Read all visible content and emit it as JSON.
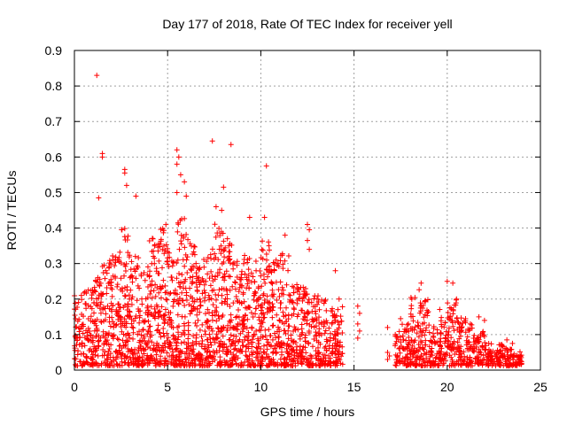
{
  "chart_data": {
    "type": "scatter",
    "title": "Day 177 of 2018, Rate Of TEC Index for receiver yell",
    "xlabel": "GPS time / hours",
    "ylabel": "ROTI / TECUs",
    "xlim": [
      0,
      25
    ],
    "ylim": [
      0,
      0.9
    ],
    "xticks": [
      0,
      5,
      10,
      15,
      20,
      25
    ],
    "xtick_labels": [
      "0",
      "5",
      "10",
      "15",
      "20",
      "25"
    ],
    "yticks": [
      0,
      0.1,
      0.2,
      0.3,
      0.4,
      0.5,
      0.6,
      0.7,
      0.8,
      0.9
    ],
    "ytick_labels": [
      "0",
      "0.1",
      "0.2",
      "0.3",
      "0.4",
      "0.5",
      "0.6",
      "0.7",
      "0.8",
      "0.9"
    ],
    "grid": true,
    "marker": "+",
    "color": "#ff0000",
    "series": [
      {
        "name": "ROTI",
        "outliers": [
          [
            1.2,
            0.83
          ],
          [
            7.4,
            0.645
          ],
          [
            8.4,
            0.635
          ],
          [
            10.3,
            0.575
          ],
          [
            1.5,
            0.61
          ],
          [
            1.5,
            0.6
          ],
          [
            5.5,
            0.62
          ],
          [
            5.6,
            0.6
          ],
          [
            5.5,
            0.58
          ],
          [
            5.7,
            0.55
          ],
          [
            5.9,
            0.53
          ],
          [
            2.7,
            0.565
          ],
          [
            2.7,
            0.555
          ],
          [
            2.8,
            0.52
          ],
          [
            8.0,
            0.515
          ],
          [
            1.3,
            0.485
          ],
          [
            6.0,
            0.49
          ],
          [
            3.3,
            0.49
          ],
          [
            5.5,
            0.5
          ],
          [
            7.6,
            0.46
          ],
          [
            7.9,
            0.45
          ],
          [
            9.4,
            0.43
          ],
          [
            10.2,
            0.43
          ],
          [
            12.5,
            0.41
          ],
          [
            12.6,
            0.395
          ],
          [
            12.5,
            0.365
          ],
          [
            12.6,
            0.34
          ],
          [
            11.3,
            0.38
          ],
          [
            14.0,
            0.28
          ],
          [
            14.2,
            0.2
          ],
          [
            15.2,
            0.18
          ],
          [
            15.3,
            0.16
          ],
          [
            15.2,
            0.13
          ],
          [
            15.3,
            0.11
          ],
          [
            15.2,
            0.09
          ],
          [
            16.8,
            0.05
          ],
          [
            16.9,
            0.04
          ],
          [
            16.8,
            0.03
          ],
          [
            16.8,
            0.12
          ],
          [
            17.5,
            0.145
          ],
          [
            18.6,
            0.245
          ],
          [
            20.0,
            0.25
          ],
          [
            20.3,
            0.245
          ],
          [
            20.5,
            0.2
          ],
          [
            21.7,
            0.15
          ],
          [
            22.0,
            0.14
          ],
          [
            23.2,
            0.085
          ],
          [
            23.5,
            0.075
          ]
        ],
        "density_profile": {
          "bins": [
            [
              0.0,
              0.5,
              0.2
            ],
            [
              0.5,
              1.0,
              0.22
            ],
            [
              1.0,
              1.5,
              0.25
            ],
            [
              1.5,
              2.0,
              0.3
            ],
            [
              2.0,
              2.5,
              0.32
            ],
            [
              2.5,
              3.0,
              0.4
            ],
            [
              3.0,
              3.5,
              0.32
            ],
            [
              3.5,
              4.0,
              0.28
            ],
            [
              4.0,
              4.5,
              0.36
            ],
            [
              4.5,
              5.0,
              0.4
            ],
            [
              5.0,
              5.5,
              0.33
            ],
            [
              5.5,
              6.0,
              0.42
            ],
            [
              6.0,
              6.5,
              0.36
            ],
            [
              6.5,
              7.0,
              0.3
            ],
            [
              7.0,
              7.5,
              0.33
            ],
            [
              7.5,
              8.0,
              0.4
            ],
            [
              8.0,
              8.5,
              0.38
            ],
            [
              8.5,
              9.0,
              0.3
            ],
            [
              9.0,
              9.5,
              0.32
            ],
            [
              9.5,
              10.0,
              0.3
            ],
            [
              10.0,
              10.5,
              0.36
            ],
            [
              10.5,
              11.0,
              0.3
            ],
            [
              11.0,
              11.5,
              0.32
            ],
            [
              11.5,
              12.0,
              0.25
            ],
            [
              12.0,
              12.5,
              0.23
            ],
            [
              12.5,
              13.0,
              0.2
            ],
            [
              13.0,
              13.5,
              0.2
            ],
            [
              13.5,
              14.0,
              0.18
            ],
            [
              14.0,
              14.4,
              0.17
            ],
            [
              17.2,
              17.5,
              0.1
            ],
            [
              17.5,
              18.0,
              0.12
            ],
            [
              18.0,
              18.5,
              0.22
            ],
            [
              18.5,
              19.0,
              0.2
            ],
            [
              19.0,
              19.5,
              0.12
            ],
            [
              19.5,
              20.0,
              0.16
            ],
            [
              20.0,
              20.5,
              0.19
            ],
            [
              20.5,
              21.0,
              0.14
            ],
            [
              21.0,
              21.5,
              0.12
            ],
            [
              21.5,
              22.0,
              0.1
            ],
            [
              22.0,
              22.5,
              0.07
            ],
            [
              22.5,
              23.0,
              0.06
            ],
            [
              23.0,
              23.5,
              0.05
            ],
            [
              23.5,
              24.0,
              0.04
            ]
          ]
        }
      }
    ]
  }
}
